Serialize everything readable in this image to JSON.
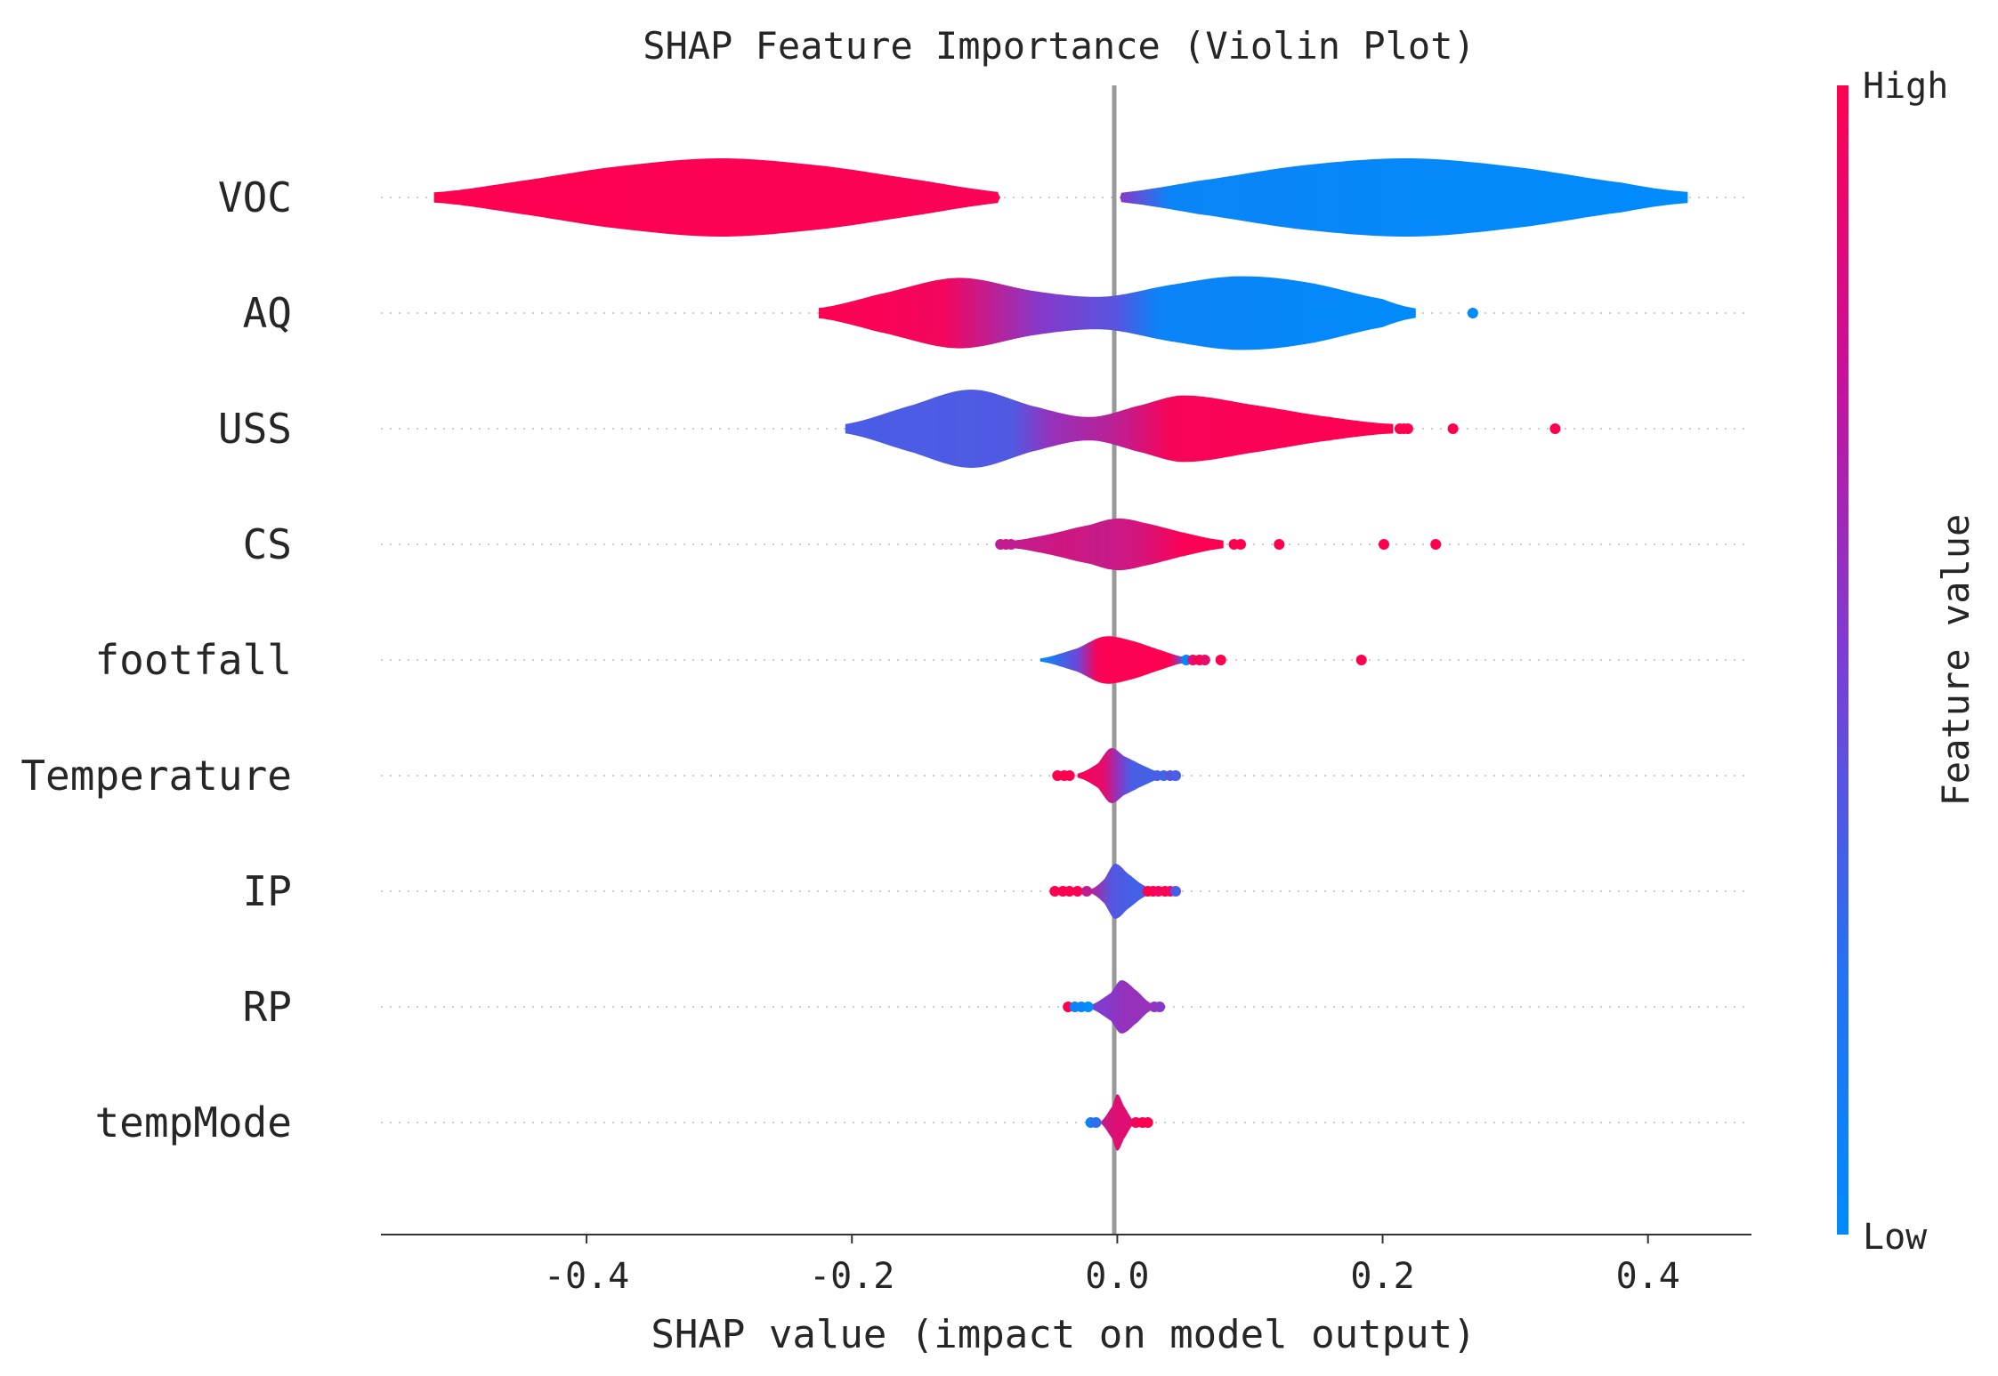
{
  "chart_data": {
    "type": "violin",
    "title": "SHAP Feature Importance (Violin Plot)",
    "xlabel": "SHAP value (impact on model output)",
    "xlim": [
      -0.555,
      0.478
    ],
    "xticks": [
      -0.4,
      -0.2,
      0.0,
      0.2,
      0.4
    ],
    "xtick_labels": [
      "-0.4",
      "-0.2",
      "0.0",
      "0.2",
      "0.4"
    ],
    "zero_line": 0.0,
    "colorbar": {
      "title": "Feature value",
      "high_label": "High",
      "low_label": "Low",
      "high_color": "#ff0051",
      "low_color": "#008bfb"
    },
    "features": [
      {
        "name": "VOC",
        "profile": [
          [
            -0.515,
            0.13
          ],
          [
            -0.45,
            0.42
          ],
          [
            -0.38,
            0.78
          ],
          [
            -0.3,
            1.0
          ],
          [
            -0.22,
            0.8
          ],
          [
            -0.15,
            0.45
          ],
          [
            -0.09,
            0.14
          ],
          [
            -0.088,
            0.0
          ],
          [
            0.002,
            0.0
          ],
          [
            0.003,
            0.12
          ],
          [
            0.06,
            0.42
          ],
          [
            0.14,
            0.82
          ],
          [
            0.22,
            1.0
          ],
          [
            0.3,
            0.78
          ],
          [
            0.38,
            0.38
          ],
          [
            0.43,
            0.14
          ]
        ],
        "colors": [
          [
            -0.515,
            1.0
          ],
          [
            -0.09,
            0.98
          ],
          [
            0.002,
            0.55
          ],
          [
            0.04,
            0.04
          ],
          [
            0.43,
            0.0
          ]
        ],
        "points": []
      },
      {
        "name": "AQ",
        "profile": [
          [
            -0.225,
            0.13
          ],
          [
            -0.18,
            0.48
          ],
          [
            -0.12,
            0.9
          ],
          [
            -0.06,
            0.55
          ],
          [
            -0.01,
            0.42
          ],
          [
            0.04,
            0.72
          ],
          [
            0.09,
            0.94
          ],
          [
            0.14,
            0.8
          ],
          [
            0.2,
            0.36
          ],
          [
            0.225,
            0.12
          ]
        ],
        "colors": [
          [
            -0.225,
            1.0
          ],
          [
            -0.13,
            0.95
          ],
          [
            -0.06,
            0.55
          ],
          [
            0.0,
            0.35
          ],
          [
            0.03,
            0.05
          ],
          [
            0.225,
            0.0
          ]
        ],
        "points": [
          [
            0.268,
            0.0
          ]
        ]
      },
      {
        "name": "USS",
        "profile": [
          [
            -0.205,
            0.12
          ],
          [
            -0.16,
            0.55
          ],
          [
            -0.11,
            1.0
          ],
          [
            -0.06,
            0.55
          ],
          [
            -0.02,
            0.3
          ],
          [
            0.02,
            0.62
          ],
          [
            0.05,
            0.85
          ],
          [
            0.1,
            0.62
          ],
          [
            0.16,
            0.3
          ],
          [
            0.208,
            0.12
          ]
        ],
        "colors": [
          [
            -0.205,
            0.3
          ],
          [
            -0.08,
            0.32
          ],
          [
            -0.05,
            0.6
          ],
          [
            0.0,
            0.75
          ],
          [
            0.04,
            0.97
          ],
          [
            0.208,
            1.0
          ]
        ],
        "points": [
          [
            0.213,
            1.0
          ],
          [
            0.216,
            1.0
          ],
          [
            0.219,
            1.0
          ],
          [
            0.253,
            1.0
          ],
          [
            0.33,
            1.0
          ]
        ]
      },
      {
        "name": "CS",
        "profile": [
          [
            -0.09,
            0.06
          ],
          [
            -0.06,
            0.2
          ],
          [
            -0.02,
            0.5
          ],
          [
            0.0,
            0.66
          ],
          [
            0.02,
            0.55
          ],
          [
            0.05,
            0.3
          ],
          [
            0.08,
            0.1
          ]
        ],
        "colors": [
          [
            -0.09,
            0.75
          ],
          [
            -0.04,
            0.82
          ],
          [
            -0.01,
            0.78
          ],
          [
            0.02,
            0.85
          ],
          [
            0.05,
            0.98
          ],
          [
            0.08,
            1.0
          ]
        ],
        "points": [
          [
            -0.088,
            0.75
          ],
          [
            -0.084,
            0.78
          ],
          [
            -0.08,
            0.75
          ],
          [
            0.088,
            1.0
          ],
          [
            0.093,
            1.0
          ],
          [
            0.122,
            1.0
          ],
          [
            0.201,
            1.0
          ],
          [
            0.24,
            1.0
          ]
        ]
      },
      {
        "name": "footfall",
        "profile": [
          [
            -0.058,
            0.04
          ],
          [
            -0.03,
            0.3
          ],
          [
            -0.01,
            0.6
          ],
          [
            0.01,
            0.5
          ],
          [
            0.03,
            0.28
          ],
          [
            0.05,
            0.08
          ]
        ],
        "colors": [
          [
            -0.058,
            0.0
          ],
          [
            -0.03,
            0.45
          ],
          [
            -0.015,
            0.98
          ],
          [
            0.04,
            1.0
          ],
          [
            0.05,
            0.3
          ]
        ],
        "points": [
          [
            0.052,
            0.05
          ],
          [
            0.057,
            0.9
          ],
          [
            0.062,
            1.0
          ],
          [
            0.066,
            0.9
          ],
          [
            0.078,
            1.0
          ],
          [
            0.184,
            1.0
          ]
        ]
      },
      {
        "name": "Temperature",
        "profile": [
          [
            -0.03,
            0.05
          ],
          [
            -0.015,
            0.3
          ],
          [
            -0.005,
            0.7
          ],
          [
            0.005,
            0.5
          ],
          [
            0.02,
            0.25
          ],
          [
            0.035,
            0.05
          ]
        ],
        "colors": [
          [
            -0.03,
            0.98
          ],
          [
            -0.01,
            0.9
          ],
          [
            0.0,
            0.6
          ],
          [
            0.01,
            0.3
          ],
          [
            0.035,
            0.25
          ]
        ],
        "points": [
          [
            -0.045,
            1.0
          ],
          [
            -0.04,
            1.0
          ],
          [
            -0.036,
            1.0
          ],
          [
            0.03,
            0.3
          ],
          [
            0.035,
            0.25
          ],
          [
            0.04,
            0.35
          ],
          [
            0.044,
            0.3
          ]
        ]
      },
      {
        "name": "IP",
        "profile": [
          [
            -0.02,
            0.05
          ],
          [
            -0.01,
            0.3
          ],
          [
            -0.002,
            0.7
          ],
          [
            0.008,
            0.45
          ],
          [
            0.02,
            0.15
          ],
          [
            0.03,
            0.04
          ]
        ],
        "colors": [
          [
            -0.02,
            0.75
          ],
          [
            -0.005,
            0.35
          ],
          [
            0.01,
            0.28
          ],
          [
            0.03,
            0.3
          ]
        ],
        "points": [
          [
            -0.047,
            1.0
          ],
          [
            -0.041,
            1.0
          ],
          [
            -0.036,
            1.0
          ],
          [
            -0.03,
            1.0
          ],
          [
            -0.023,
            0.75
          ],
          [
            0.023,
            1.0
          ],
          [
            0.027,
            1.0
          ],
          [
            0.031,
            0.95
          ],
          [
            0.036,
            1.0
          ],
          [
            0.04,
            0.95
          ],
          [
            0.044,
            0.3
          ]
        ]
      },
      {
        "name": "RP",
        "profile": [
          [
            -0.02,
            0.05
          ],
          [
            -0.005,
            0.35
          ],
          [
            0.003,
            0.68
          ],
          [
            0.015,
            0.4
          ],
          [
            0.025,
            0.1
          ]
        ],
        "colors": [
          [
            -0.02,
            0.5
          ],
          [
            -0.005,
            0.55
          ],
          [
            0.005,
            0.6
          ],
          [
            0.025,
            0.6
          ]
        ],
        "points": [
          [
            -0.037,
            1.0
          ],
          [
            -0.032,
            0.05
          ],
          [
            -0.027,
            0.05
          ],
          [
            -0.022,
            0.0
          ],
          [
            0.028,
            0.6
          ],
          [
            0.032,
            0.55
          ]
        ]
      },
      {
        "name": "tempMode",
        "profile": [
          [
            -0.012,
            0.04
          ],
          [
            -0.004,
            0.4
          ],
          [
            0.0,
            0.72
          ],
          [
            0.005,
            0.42
          ],
          [
            0.012,
            0.06
          ]
        ],
        "colors": [
          [
            -0.012,
            0.78
          ],
          [
            0.0,
            0.88
          ],
          [
            0.012,
            0.88
          ]
        ],
        "points": [
          [
            -0.02,
            0.05
          ],
          [
            -0.016,
            0.2
          ],
          [
            0.014,
            0.95
          ],
          [
            0.019,
            1.0
          ],
          [
            0.023,
            1.0
          ]
        ]
      }
    ]
  }
}
